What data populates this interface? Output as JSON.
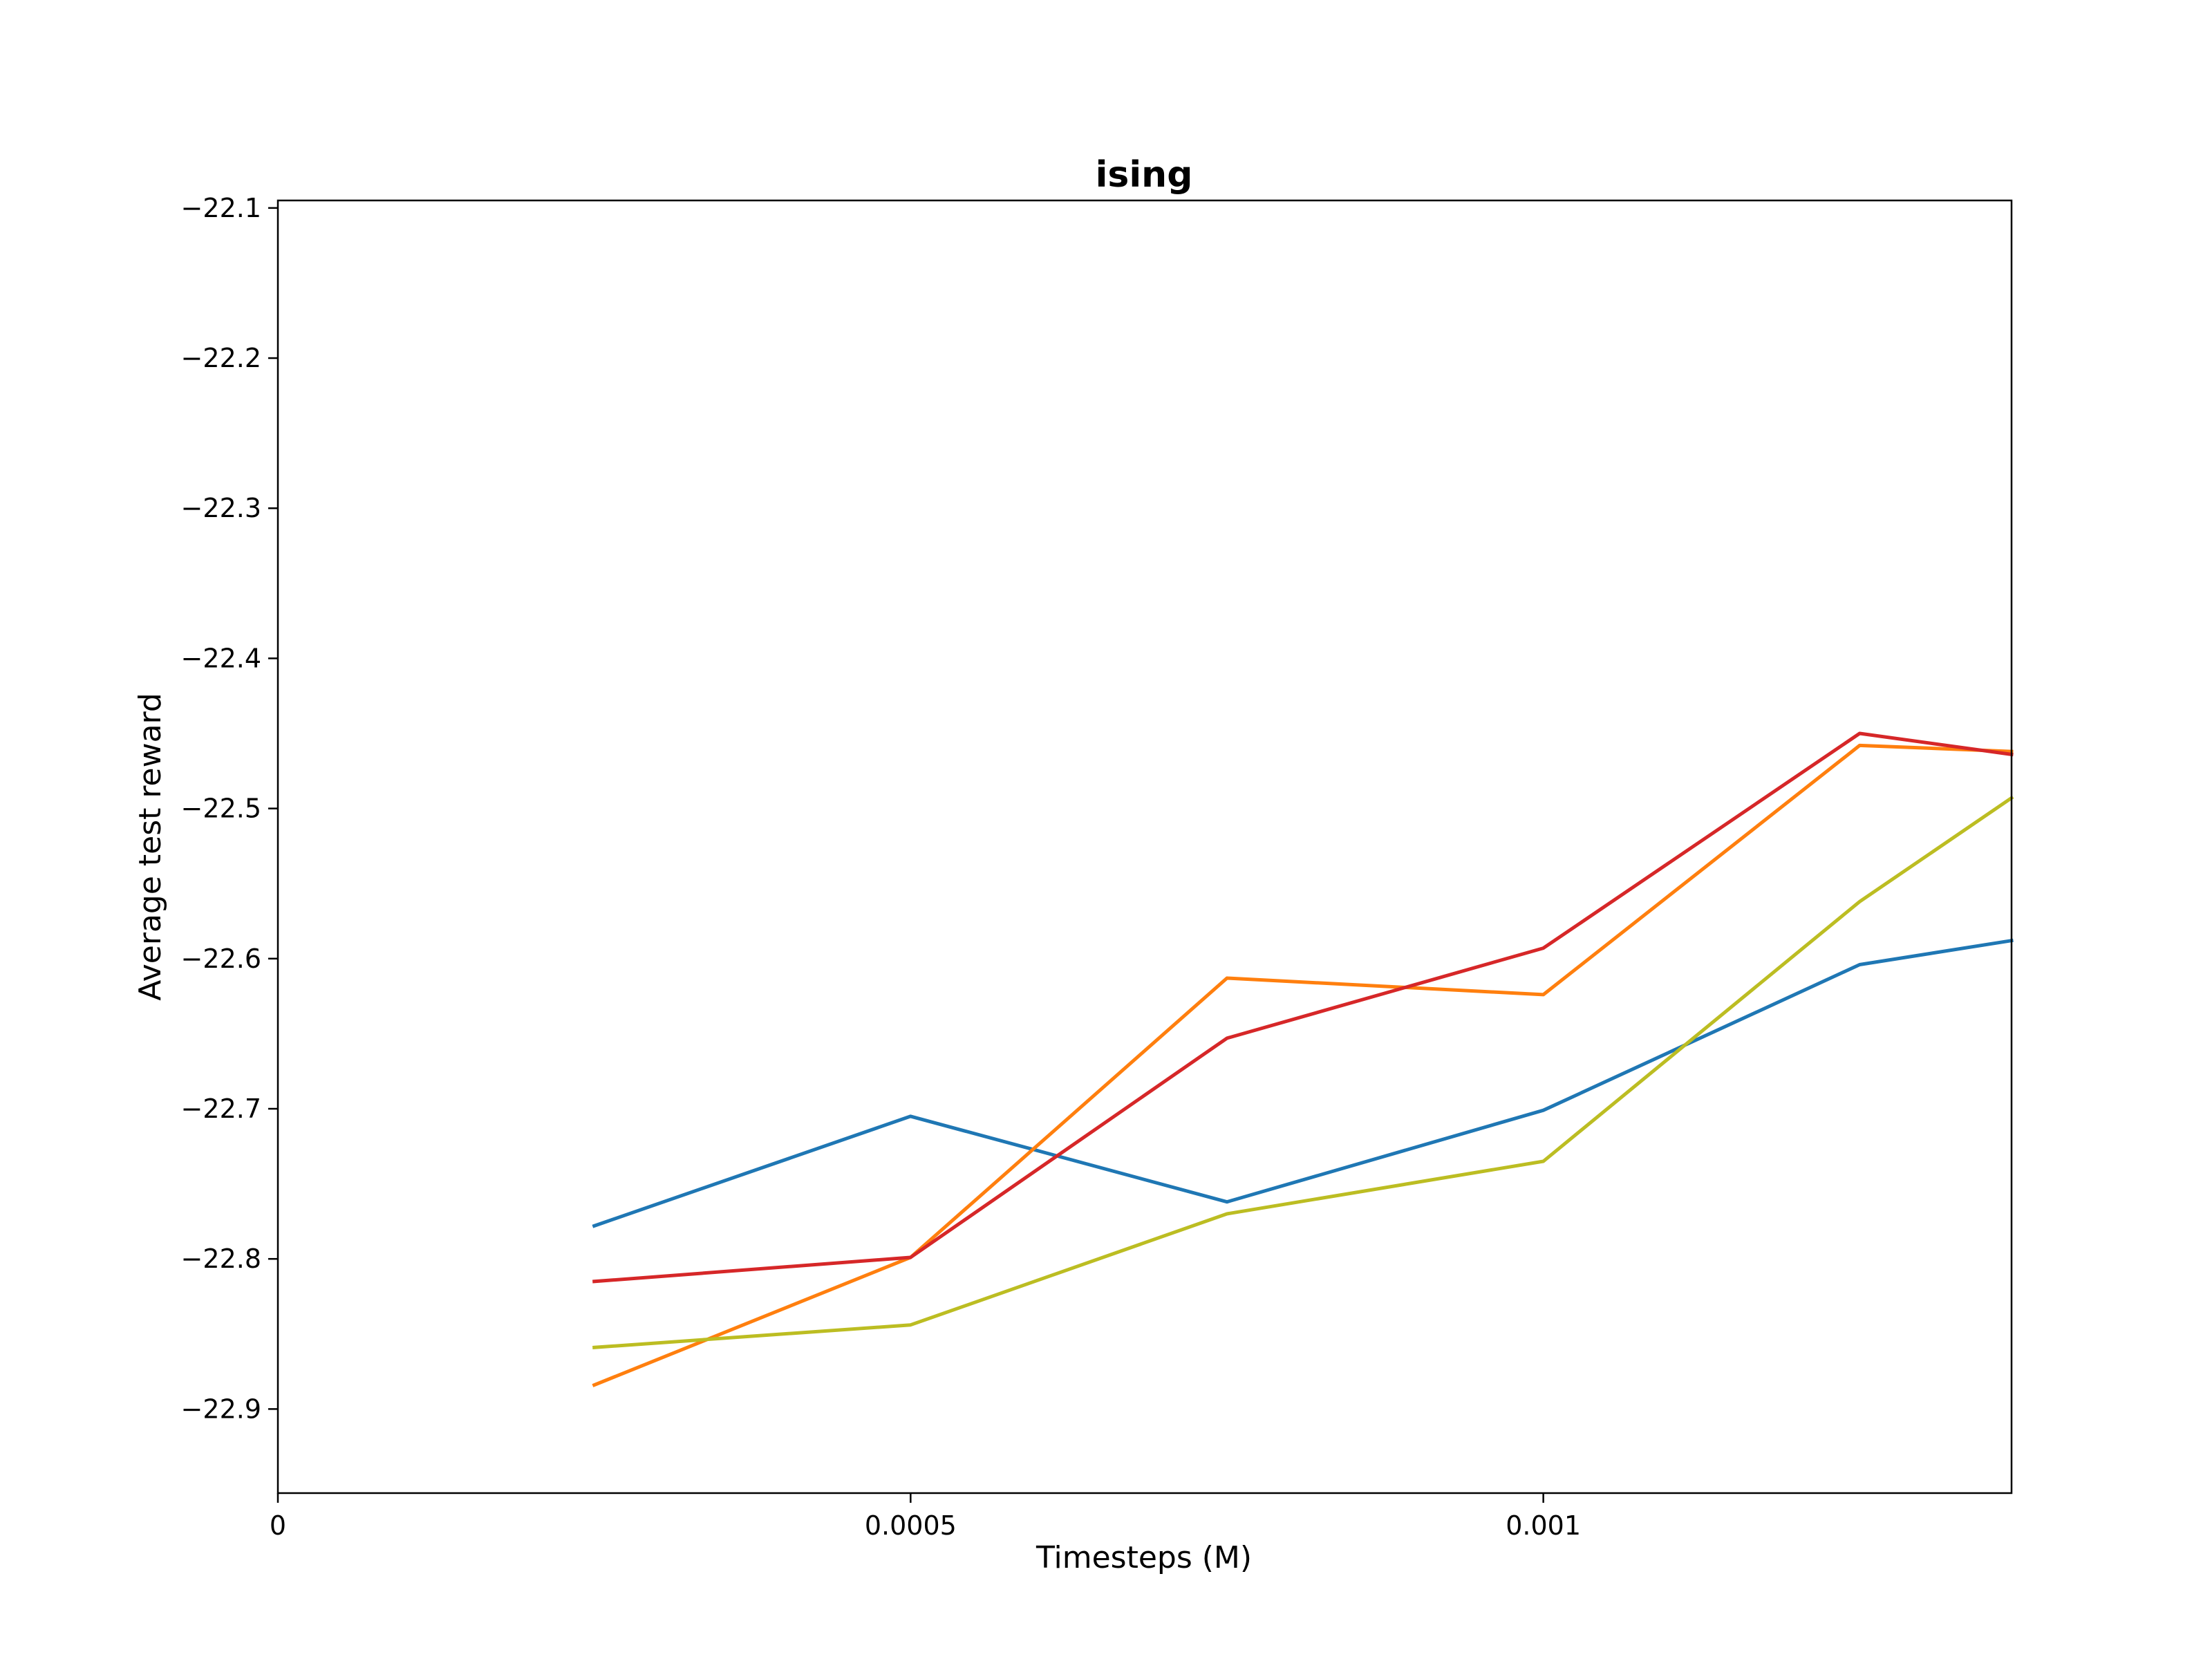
{
  "chart_data": {
    "type": "line",
    "title": "ising",
    "xlabel": "Timesteps (M)",
    "ylabel": "Average test reward",
    "xlim": [
      0,
      0.00137
    ],
    "ylim": [
      -22.956,
      -22.095
    ],
    "xticks": [
      {
        "value": 0,
        "label": "0"
      },
      {
        "value": 0.0005,
        "label": "0.0005"
      },
      {
        "value": 0.001,
        "label": "0.001"
      }
    ],
    "yticks": [
      {
        "value": -22.1,
        "label": "−22.1"
      },
      {
        "value": -22.2,
        "label": "−22.2"
      },
      {
        "value": -22.3,
        "label": "−22.3"
      },
      {
        "value": -22.4,
        "label": "−22.4"
      },
      {
        "value": -22.5,
        "label": "−22.5"
      },
      {
        "value": -22.6,
        "label": "−22.6"
      },
      {
        "value": -22.7,
        "label": "−22.7"
      },
      {
        "value": -22.8,
        "label": "−22.8"
      },
      {
        "value": -22.9,
        "label": "−22.9"
      }
    ],
    "x": [
      0.00025,
      0.0005,
      0.00075,
      0.001,
      0.00125,
      0.00137
    ],
    "series": [
      {
        "color": "#1f77b4",
        "values": [
          -22.778,
          -22.705,
          -22.762,
          -22.701,
          -22.604,
          -22.588
        ]
      },
      {
        "color": "#ff7f0e",
        "values": [
          -22.884,
          -22.799,
          -22.613,
          -22.624,
          -22.458,
          -22.462
        ]
      },
      {
        "color": "#d62728",
        "values": [
          -22.815,
          -22.799,
          -22.653,
          -22.593,
          -22.45,
          -22.464
        ]
      },
      {
        "color": "#bcbd22",
        "values": [
          -22.859,
          -22.844,
          -22.77,
          -22.735,
          -22.562,
          -22.493
        ]
      }
    ],
    "grid": false,
    "legend": false
  }
}
